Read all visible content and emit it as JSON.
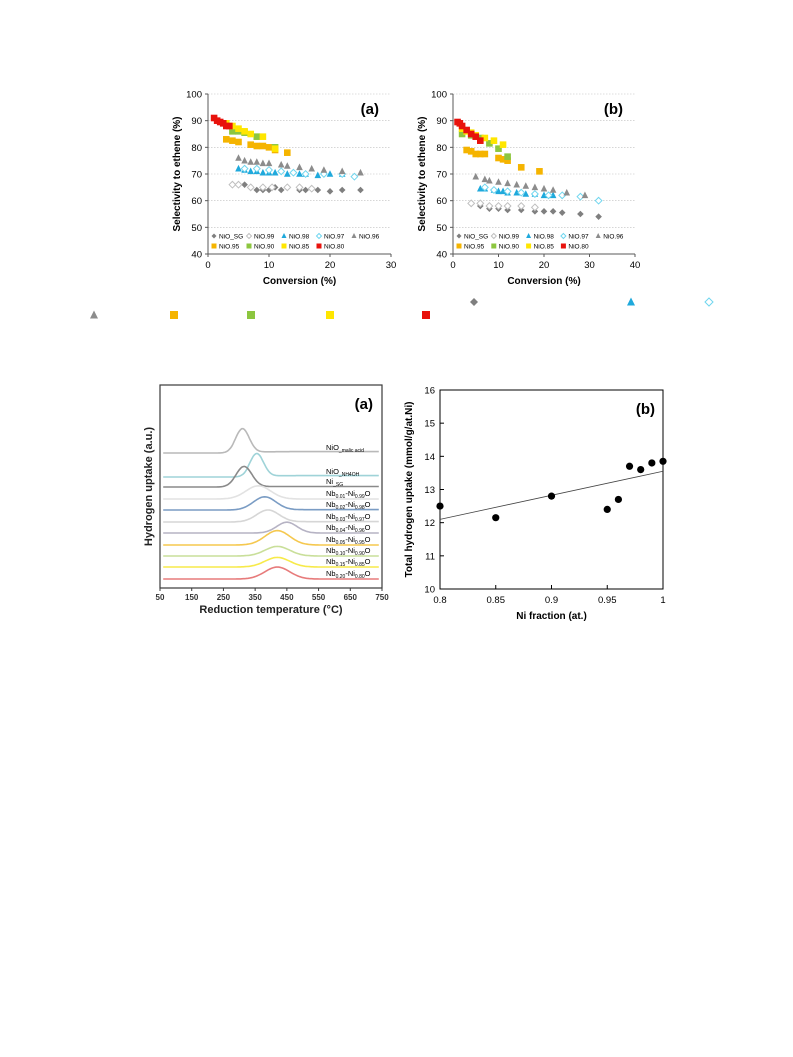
{
  "page": {
    "background": "#ffffff"
  },
  "colors": {
    "NiO_SG": "#7f7f7f",
    "NiO.99": "#bfbfbf",
    "NiO.98": "#1fa9dc",
    "NiO.97": "#6fd6ef",
    "NiO.96": "#8c8c8c",
    "NiO.95": "#f5b400",
    "NiO.90": "#8cc63f",
    "NiO.85": "#ffe600",
    "NiO.80": "#e8120c"
  },
  "stray_legend_markers": [
    {
      "series": "NiO_SG",
      "marker": "diamond"
    },
    {
      "series": "NiO.98",
      "marker": "triangle"
    },
    {
      "series": "NiO.97",
      "marker": "diamond-open"
    },
    {
      "series": "NiO.96",
      "marker": "triangle"
    },
    {
      "series": "NiO.95",
      "marker": "square"
    },
    {
      "series": "NiO.90",
      "marker": "square"
    },
    {
      "series": "NiO.85",
      "marker": "square"
    },
    {
      "series": "NiO.80",
      "marker": "square"
    }
  ],
  "chart_data": [
    {
      "panel": "(a)",
      "type": "scatter",
      "xlabel": "Conversion (%)",
      "ylabel": "Selectivity to ethene (%)",
      "xlim": [
        0,
        30
      ],
      "ylim": [
        40,
        100
      ],
      "xticks": [
        0,
        10,
        20,
        30
      ],
      "yticks": [
        40,
        50,
        60,
        70,
        80,
        90,
        100
      ],
      "grid": "horizontal dotted",
      "legend": "bottom-inside",
      "series": [
        {
          "name": "NiO_SG",
          "marker": "diamond",
          "points": [
            [
              6,
              66
            ],
            [
              8,
              64
            ],
            [
              9,
              64
            ],
            [
              10,
              64
            ],
            [
              11,
              65
            ],
            [
              12,
              64
            ],
            [
              15,
              64
            ],
            [
              16,
              64
            ],
            [
              18,
              64
            ],
            [
              20,
              63.5
            ],
            [
              22,
              64
            ],
            [
              25,
              64
            ]
          ]
        },
        {
          "name": "NiO.99",
          "marker": "diamond-open",
          "points": [
            [
              4,
              66
            ],
            [
              5,
              66
            ],
            [
              7,
              65
            ],
            [
              9,
              65
            ],
            [
              10.5,
              65
            ],
            [
              13,
              65
            ],
            [
              15,
              65
            ],
            [
              17,
              64.5
            ]
          ]
        },
        {
          "name": "NiO.98",
          "marker": "triangle",
          "points": [
            [
              5,
              72
            ],
            [
              6,
              71.5
            ],
            [
              7,
              71
            ],
            [
              8,
              71
            ],
            [
              9,
              70.5
            ],
            [
              10,
              70.5
            ],
            [
              11,
              70.5
            ],
            [
              13,
              70
            ],
            [
              15,
              70
            ],
            [
              16,
              70
            ],
            [
              18,
              69.5
            ],
            [
              20,
              70
            ],
            [
              22,
              70
            ]
          ]
        },
        {
          "name": "NiO.97",
          "marker": "diamond-open",
          "points": [
            [
              6,
              72
            ],
            [
              8,
              72
            ],
            [
              10,
              71.5
            ],
            [
              12,
              71
            ],
            [
              14,
              70.5
            ],
            [
              16,
              70
            ],
            [
              19,
              70
            ],
            [
              22,
              70
            ],
            [
              24,
              69
            ]
          ]
        },
        {
          "name": "NiO.96",
          "marker": "triangle",
          "points": [
            [
              5,
              76
            ],
            [
              6,
              75
            ],
            [
              7,
              74.5
            ],
            [
              8,
              74.5
            ],
            [
              9,
              74
            ],
            [
              10,
              74
            ],
            [
              12,
              73.5
            ],
            [
              13,
              73
            ],
            [
              15,
              72.5
            ],
            [
              17,
              72
            ],
            [
              19,
              71.5
            ],
            [
              22,
              71
            ],
            [
              25,
              70.5
            ]
          ]
        },
        {
          "name": "NiO.95",
          "marker": "square",
          "points": [
            [
              3,
              83
            ],
            [
              4,
              82.5
            ],
            [
              5,
              82
            ],
            [
              7,
              81
            ],
            [
              8,
              80.5
            ],
            [
              9,
              80.5
            ],
            [
              10,
              80
            ],
            [
              11,
              79
            ],
            [
              13,
              78
            ]
          ]
        },
        {
          "name": "NiO.90",
          "marker": "square",
          "points": [
            [
              4,
              86
            ],
            [
              5,
              86
            ],
            [
              6,
              85.5
            ],
            [
              8,
              84
            ],
            [
              11,
              80
            ]
          ]
        },
        {
          "name": "NiO.85",
          "marker": "square",
          "points": [
            [
              3,
              89
            ],
            [
              4,
              88
            ],
            [
              5,
              87
            ],
            [
              6,
              86
            ],
            [
              7,
              85
            ],
            [
              9,
              84
            ],
            [
              11,
              79.5
            ]
          ]
        },
        {
          "name": "NiO.80",
          "marker": "square",
          "points": [
            [
              1,
              91
            ],
            [
              1.5,
              90
            ],
            [
              2,
              89.5
            ],
            [
              2.5,
              89
            ],
            [
              3,
              88
            ],
            [
              3.5,
              88
            ]
          ]
        }
      ]
    },
    {
      "panel": "(b)",
      "type": "scatter",
      "xlabel": "Conversion (%)",
      "ylabel": "Selectivity to ethene (%)",
      "xlim": [
        0,
        40
      ],
      "ylim": [
        40,
        100
      ],
      "xticks": [
        0,
        10,
        20,
        30,
        40
      ],
      "yticks": [
        40,
        50,
        60,
        70,
        80,
        90,
        100
      ],
      "grid": "horizontal dotted",
      "legend": "bottom-inside",
      "series": [
        {
          "name": "NiO_SG",
          "marker": "diamond",
          "points": [
            [
              6,
              58
            ],
            [
              8,
              57
            ],
            [
              10,
              57
            ],
            [
              12,
              56.5
            ],
            [
              15,
              56.5
            ],
            [
              18,
              56
            ],
            [
              20,
              56
            ],
            [
              22,
              56
            ],
            [
              24,
              55.5
            ],
            [
              28,
              55
            ],
            [
              32,
              54
            ]
          ]
        },
        {
          "name": "NiO.99",
          "marker": "diamond-open",
          "points": [
            [
              4,
              59
            ],
            [
              6,
              59
            ],
            [
              8,
              58
            ],
            [
              10,
              58
            ],
            [
              12,
              58
            ],
            [
              15,
              58
            ],
            [
              18,
              57.5
            ]
          ]
        },
        {
          "name": "NiO.98",
          "marker": "triangle",
          "points": [
            [
              6,
              64.5
            ],
            [
              7,
              64.5
            ],
            [
              9,
              64
            ],
            [
              10,
              63.5
            ],
            [
              11,
              63.5
            ],
            [
              12,
              63
            ],
            [
              14,
              63
            ],
            [
              16,
              62.5
            ],
            [
              18,
              62.5
            ],
            [
              20,
              62
            ],
            [
              22,
              62
            ]
          ]
        },
        {
          "name": "NiO.97",
          "marker": "diamond-open",
          "points": [
            [
              7,
              65
            ],
            [
              9,
              64
            ],
            [
              12,
              63.5
            ],
            [
              15,
              63
            ],
            [
              18,
              62.5
            ],
            [
              21,
              62
            ],
            [
              24,
              62
            ],
            [
              28,
              61.5
            ],
            [
              32,
              60
            ]
          ]
        },
        {
          "name": "NiO.96",
          "marker": "triangle",
          "points": [
            [
              5,
              69
            ],
            [
              7,
              68
            ],
            [
              8,
              67.5
            ],
            [
              10,
              67
            ],
            [
              12,
              66.5
            ],
            [
              14,
              66
            ],
            [
              16,
              65.5
            ],
            [
              18,
              65
            ],
            [
              20,
              64.5
            ],
            [
              22,
              64
            ],
            [
              25,
              63
            ],
            [
              29,
              62
            ]
          ]
        },
        {
          "name": "NiO.95",
          "marker": "square",
          "points": [
            [
              3,
              79
            ],
            [
              4,
              78.5
            ],
            [
              5,
              77.5
            ],
            [
              6,
              77.5
            ],
            [
              7,
              77.5
            ],
            [
              10,
              76
            ],
            [
              11,
              75.5
            ],
            [
              12,
              75
            ],
            [
              15,
              72.5
            ],
            [
              19,
              71
            ]
          ]
        },
        {
          "name": "NiO.90",
          "marker": "square",
          "points": [
            [
              2,
              85
            ],
            [
              4,
              84.5
            ],
            [
              6,
              83.5
            ],
            [
              8,
              81.5
            ],
            [
              10,
              79.5
            ],
            [
              12,
              76.5
            ]
          ]
        },
        {
          "name": "NiO.85",
          "marker": "square",
          "points": [
            [
              2,
              87
            ],
            [
              3,
              86
            ],
            [
              4,
              85.5
            ],
            [
              5,
              84.5
            ],
            [
              7,
              83.5
            ],
            [
              9,
              82.5
            ],
            [
              11,
              81
            ]
          ]
        },
        {
          "name": "NiO.80",
          "marker": "square",
          "points": [
            [
              1,
              89.5
            ],
            [
              1.5,
              89
            ],
            [
              2,
              88
            ],
            [
              3,
              86.5
            ],
            [
              4,
              85
            ],
            [
              5,
              84
            ],
            [
              6,
              82.5
            ]
          ]
        }
      ]
    },
    {
      "panel": "(a)",
      "type": "line",
      "xlabel": "Reduction temperature (°C)",
      "ylabel": "Hydrogen uptake (a.u.)",
      "xlim": [
        50,
        750
      ],
      "xticks": [
        50,
        150,
        250,
        350,
        450,
        550,
        650,
        750
      ],
      "grid": "none",
      "series": [
        {
          "label_main": "NiO",
          "label_sub": "_malic acid",
          "label_tail": "",
          "color": "#b9b9b9",
          "peak": 310,
          "width": 30,
          "height": 1.0,
          "step": 0.1,
          "tail": 0.15
        },
        {
          "label_main": "NiO",
          "label_sub": "_NH4OH",
          "label_tail": "",
          "color": "#9fd3d8",
          "peak": 355,
          "width": 30,
          "height": 0.95,
          "step": 0.2,
          "tail": 0.1
        },
        {
          "label_main": "Ni",
          "label_sub": "_SG",
          "label_tail": "",
          "color": "#8a8a8a",
          "peak": 315,
          "width": 35,
          "height": 0.85,
          "step": 0.05,
          "tail": 0.05
        },
        {
          "label_main": "Nb",
          "label_sub": "0.01",
          "label_tail": "-Ni",
          "label_sub2": "0.99",
          "label_end": "O",
          "color": "#e2e2e2",
          "peak": 360,
          "width": 55,
          "height": 0.55,
          "step": 0.0,
          "tail": 0.0
        },
        {
          "label_main": "Nb",
          "label_sub": "0.02",
          "label_tail": "-Ni",
          "label_sub2": "0.98",
          "label_end": "O",
          "color": "#7a9cc4",
          "peak": 380,
          "width": 50,
          "height": 0.55,
          "step": 0.0,
          "tail": 0.05
        },
        {
          "label_main": "Nb",
          "label_sub": "0.03",
          "label_tail": "-Ni",
          "label_sub2": "0.97",
          "label_end": "O",
          "color": "#d6d6d6",
          "peak": 390,
          "width": 50,
          "height": 0.5,
          "step": 0.0,
          "tail": 0.05
        },
        {
          "label_main": "Nb",
          "label_sub": "0.04",
          "label_tail": "-Ni",
          "label_sub2": "0.96",
          "label_end": "O",
          "color": "#b6b3c4",
          "peak": 450,
          "width": 45,
          "height": 0.45,
          "step": 0.0,
          "tail": 0.0
        },
        {
          "label_main": "Nb",
          "label_sub": "0.05",
          "label_tail": "-Ni",
          "label_sub2": "0.95",
          "label_end": "O",
          "color": "#f5c84f",
          "peak": 420,
          "width": 55,
          "height": 0.6,
          "step": 0.0,
          "tail": 0.0
        },
        {
          "label_main": "Nb",
          "label_sub": "0.10",
          "label_tail": "-Ni",
          "label_sub2": "0.90",
          "label_end": "O",
          "color": "#c9df9a",
          "peak": 420,
          "width": 55,
          "height": 0.4,
          "step": 0.0,
          "tail": 0.0
        },
        {
          "label_main": "Nb",
          "label_sub": "0.15",
          "label_tail": "-Ni",
          "label_sub2": "0.85",
          "label_end": "O",
          "color": "#f7ea4a",
          "peak": 420,
          "width": 55,
          "height": 0.4,
          "step": 0.0,
          "tail": 0.0
        },
        {
          "label_main": "Nb",
          "label_sub": "0.20",
          "label_tail": "-Ni",
          "label_sub2": "0.80",
          "label_end": "O",
          "color": "#e77b7b",
          "peak": 420,
          "width": 55,
          "height": 0.5,
          "step": 0.0,
          "tail": 0.0
        }
      ]
    },
    {
      "panel": "(b)",
      "type": "scatter",
      "xlabel": "Ni fraction (at.)",
      "ylabel": "Total hydrogen uptake (mmol/g/at.Ni)",
      "xlim": [
        0.8,
        1.0
      ],
      "ylim": [
        10,
        16
      ],
      "xticks": [
        "0.8",
        "0.85",
        "0.9",
        "0.95",
        "1"
      ],
      "yticks": [
        10,
        11,
        12,
        13,
        14,
        15,
        16
      ],
      "grid": "none",
      "points": [
        [
          0.8,
          12.5
        ],
        [
          0.85,
          12.15
        ],
        [
          0.9,
          12.8
        ],
        [
          0.95,
          12.4
        ],
        [
          0.96,
          12.7
        ],
        [
          0.97,
          13.7
        ],
        [
          0.98,
          13.6
        ],
        [
          0.99,
          13.8
        ],
        [
          1.0,
          13.85
        ]
      ],
      "trendline": [
        [
          0.8,
          12.1
        ],
        [
          1.0,
          13.55
        ]
      ]
    }
  ]
}
